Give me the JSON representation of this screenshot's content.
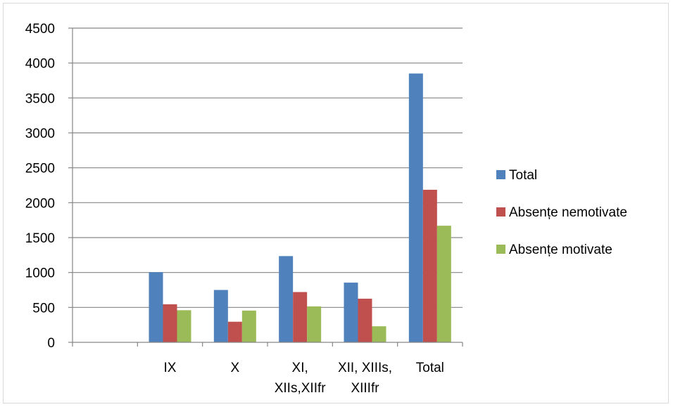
{
  "chart_data": {
    "type": "bar",
    "title": "",
    "xlabel": "",
    "ylabel": "",
    "ylim": [
      0,
      4500
    ],
    "yticks": [
      0,
      500,
      1000,
      1500,
      2000,
      2500,
      3000,
      3500,
      4000,
      4500
    ],
    "grid": true,
    "legend_position": "right",
    "categories": [
      [
        ""
      ],
      [
        "IX"
      ],
      [
        "X"
      ],
      [
        "XI,",
        "XIIs,XIIfr"
      ],
      [
        "XII, XIIIs,",
        "XIIIfr"
      ],
      [
        "Total"
      ]
    ],
    "series": [
      {
        "name": "Total",
        "color": "#4f81bd",
        "values": [
          0,
          1005,
          750,
          1235,
          855,
          3850
        ]
      },
      {
        "name": "Absențe nemotivate",
        "color": "#c0504d",
        "values": [
          0,
          545,
          295,
          720,
          625,
          2185
        ]
      },
      {
        "name": "Absențe motivate",
        "color": "#9bbb59",
        "values": [
          0,
          460,
          455,
          515,
          230,
          1670
        ]
      }
    ]
  }
}
